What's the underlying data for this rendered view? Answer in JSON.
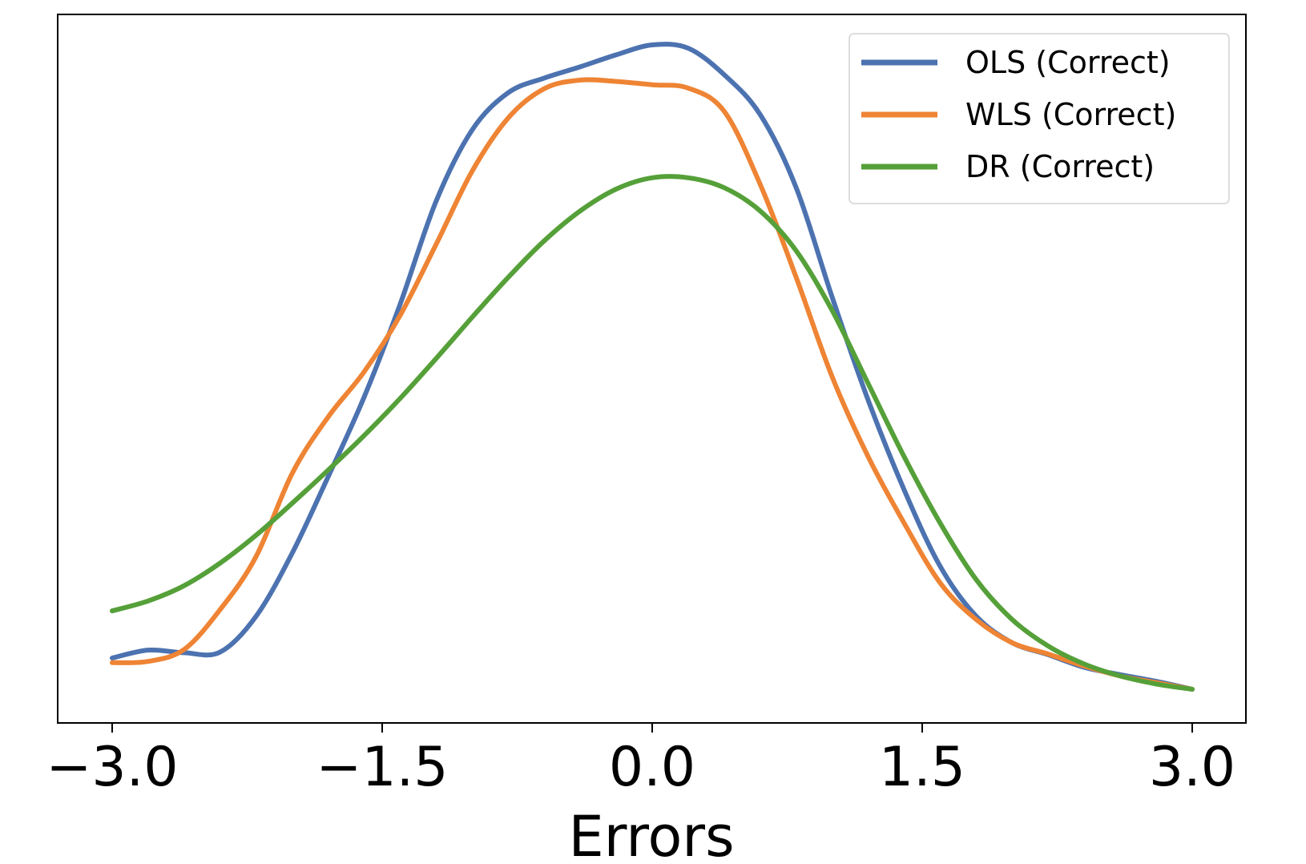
{
  "chart_data": {
    "type": "line",
    "title": "",
    "xlabel": "Errors",
    "ylabel": "",
    "xlim": [
      -3.3,
      3.3
    ],
    "ylim": [
      0,
      1.0
    ],
    "grid": false,
    "legend_position": "top-right",
    "x_ticks": [
      -3.0,
      -1.5,
      0.0,
      1.5,
      3.0
    ],
    "x_tick_labels": [
      "−3.0",
      "−1.5",
      "0.0",
      "1.5",
      "3.0"
    ],
    "series": [
      {
        "name": "OLS (Correct)",
        "color": "#4c72b0",
        "x": [
          -3.0,
          -2.8,
          -2.6,
          -2.4,
          -2.2,
          -2.0,
          -1.8,
          -1.6,
          -1.4,
          -1.2,
          -1.0,
          -0.8,
          -0.6,
          -0.4,
          -0.2,
          0.0,
          0.2,
          0.4,
          0.6,
          0.8,
          1.0,
          1.2,
          1.4,
          1.6,
          1.8,
          2.0,
          2.2,
          2.4,
          2.6,
          2.8,
          3.0
        ],
        "values": [
          0.077,
          0.089,
          0.085,
          0.086,
          0.14,
          0.235,
          0.35,
          0.47,
          0.61,
          0.765,
          0.872,
          0.928,
          0.95,
          0.967,
          0.985,
          1.0,
          0.995,
          0.955,
          0.895,
          0.785,
          0.62,
          0.465,
          0.33,
          0.215,
          0.14,
          0.1,
          0.082,
          0.063,
          0.052,
          0.042,
          0.03
        ]
      },
      {
        "name": "WLS (Correct)",
        "color": "#ee8434",
        "x": [
          -3.0,
          -2.8,
          -2.6,
          -2.4,
          -2.2,
          -2.0,
          -1.8,
          -1.6,
          -1.4,
          -1.2,
          -1.0,
          -0.8,
          -0.6,
          -0.4,
          -0.2,
          0.0,
          0.2,
          0.4,
          0.6,
          0.8,
          1.0,
          1.2,
          1.4,
          1.6,
          1.8,
          2.0,
          2.2,
          2.4,
          2.6,
          2.8,
          3.0
        ],
        "values": [
          0.07,
          0.072,
          0.09,
          0.15,
          0.23,
          0.355,
          0.44,
          0.508,
          0.593,
          0.7,
          0.81,
          0.89,
          0.934,
          0.947,
          0.945,
          0.94,
          0.935,
          0.9,
          0.79,
          0.65,
          0.5,
          0.38,
          0.28,
          0.19,
          0.135,
          0.1,
          0.083,
          0.065,
          0.05,
          0.04,
          0.03
        ]
      },
      {
        "name": "DR (Correct)",
        "color": "#55a039",
        "x": [
          -3.0,
          -2.8,
          -2.6,
          -2.4,
          -2.2,
          -2.0,
          -1.8,
          -1.6,
          -1.4,
          -1.2,
          -1.0,
          -0.8,
          -0.6,
          -0.4,
          -0.2,
          0.0,
          0.2,
          0.4,
          0.6,
          0.8,
          1.0,
          1.2,
          1.4,
          1.6,
          1.8,
          2.0,
          2.2,
          2.4,
          2.6,
          2.8,
          3.0
        ],
        "values": [
          0.148,
          0.163,
          0.186,
          0.22,
          0.262,
          0.31,
          0.36,
          0.412,
          0.468,
          0.528,
          0.59,
          0.65,
          0.705,
          0.75,
          0.783,
          0.8,
          0.8,
          0.785,
          0.75,
          0.69,
          0.6,
          0.49,
          0.38,
          0.28,
          0.195,
          0.135,
          0.095,
          0.068,
          0.05,
          0.038,
          0.03
        ]
      }
    ]
  }
}
